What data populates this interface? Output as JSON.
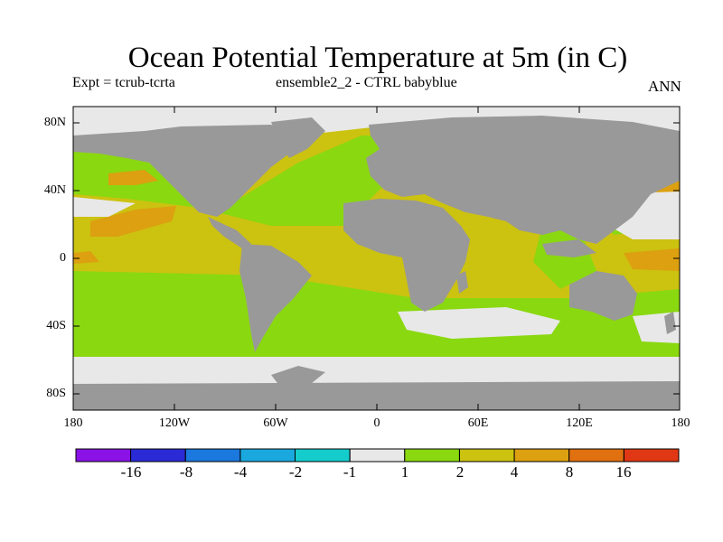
{
  "title": "Ocean Potential Temperature at 5m (in C)",
  "subtitle_left": "Expt = tcrub-tcrta",
  "subtitle_center": "ensemble2_2 - CTRL babyblue",
  "subtitle_right": "ANN",
  "lat_labels": [
    "80N",
    "40N",
    "0",
    "40S",
    "80S"
  ],
  "lon_labels": [
    "180",
    "120W",
    "60W",
    "0",
    "60E",
    "120E",
    "180"
  ],
  "colorbar": {
    "colors": [
      "#8a12e6",
      "#2a2ad6",
      "#1a78de",
      "#1aa8de",
      "#14cccc",
      "#e8e8e8",
      "#8ad810",
      "#ccc210",
      "#dca010",
      "#e07010",
      "#e03814"
    ],
    "labels": [
      "-16",
      "-8",
      "-4",
      "-2",
      "-1",
      "1",
      "2",
      "4",
      "8",
      "16"
    ]
  },
  "palette": {
    "land": "#999999",
    "near_zero": "#e8e8e8",
    "band_1_2": "#8ad810",
    "band_2_4": "#ccc210",
    "band_4_8": "#dca010",
    "band_8_16": "#e07010"
  }
}
